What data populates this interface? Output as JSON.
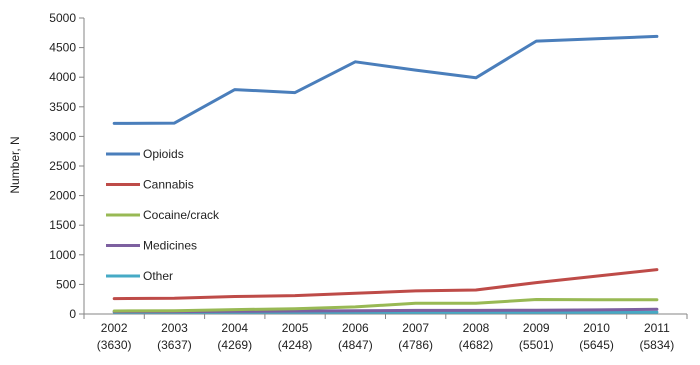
{
  "chart_data": {
    "type": "line",
    "title": "",
    "xlabel": "",
    "ylabel": "Number, N",
    "ylim": [
      0,
      5000
    ],
    "yticks": [
      0,
      500,
      1000,
      1500,
      2000,
      2500,
      3000,
      3500,
      4000,
      4500,
      5000
    ],
    "grid": false,
    "legend_placement": "left, inside plot",
    "categories": [
      "2002",
      "2003",
      "2004",
      "2005",
      "2006",
      "2007",
      "2008",
      "2009",
      "2010",
      "2011"
    ],
    "category_totals": [
      "(3630)",
      "(3637)",
      "(4269)",
      "(4248)",
      "(4847)",
      "(4786)",
      "(4682)",
      "(5501)",
      "(5645)",
      "(5834)"
    ],
    "series": [
      {
        "name": "Opioids",
        "color": "#4a7ebb",
        "values": [
          3220,
          3225,
          3790,
          3740,
          4260,
          4120,
          3990,
          4610,
          4650,
          4690
        ]
      },
      {
        "name": "Cannabis",
        "color": "#be4b48",
        "values": [
          260,
          265,
          295,
          310,
          350,
          390,
          405,
          530,
          640,
          750
        ]
      },
      {
        "name": "Cocaine/crack",
        "color": "#98b954",
        "values": [
          50,
          55,
          75,
          90,
          120,
          180,
          180,
          245,
          240,
          240
        ]
      },
      {
        "name": "Medicines",
        "color": "#7d60a0",
        "values": [
          40,
          40,
          45,
          50,
          55,
          60,
          60,
          65,
          70,
          80
        ]
      },
      {
        "name": "Other",
        "color": "#46aac5",
        "values": [
          30,
          30,
          30,
          30,
          30,
          30,
          30,
          30,
          30,
          30
        ]
      }
    ]
  }
}
